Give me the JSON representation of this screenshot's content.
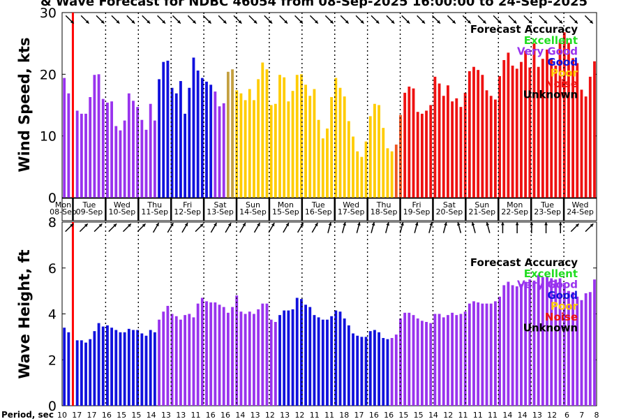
{
  "title": "& Wave Forecast for NDBC 46054 from 08-Sep-2025 16:00:00 to 24-Sep-2025",
  "period_label": "Period, sec",
  "period_values": [
    "10",
    "17",
    "17",
    "16",
    "15",
    "15",
    "14",
    "13",
    "13",
    "11",
    "16",
    "16",
    "14",
    "13",
    "12",
    "13",
    "12",
    "11",
    "11",
    "18",
    "17",
    "16",
    "16",
    "15",
    "15",
    "14",
    "12",
    "11",
    "11",
    "11",
    "14",
    "14",
    "13",
    "12",
    "6",
    "7",
    "8"
  ],
  "day_labels": [
    {
      "day": "Mon",
      "date": "08-Sep"
    },
    {
      "day": "Tue",
      "date": "09-Sep"
    },
    {
      "day": "Wed",
      "date": "10-Sep"
    },
    {
      "day": "Thu",
      "date": "11-Sep"
    },
    {
      "day": "Fri",
      "date": "12-Sep"
    },
    {
      "day": "Sat",
      "date": "13-Sep"
    },
    {
      "day": "Sun",
      "date": "14-Sep"
    },
    {
      "day": "Mon",
      "date": "15-Sep"
    },
    {
      "day": "Tue",
      "date": "16-Sep"
    },
    {
      "day": "Wed",
      "date": "17-Sep"
    },
    {
      "day": "Thu",
      "date": "18-Sep"
    },
    {
      "day": "Fri",
      "date": "19-Sep"
    },
    {
      "day": "Sat",
      "date": "20-Sep"
    },
    {
      "day": "Sun",
      "date": "21-Sep"
    },
    {
      "day": "Mon",
      "date": "22-Sep"
    },
    {
      "day": "Tue",
      "date": "23-Sep"
    },
    {
      "day": "Wed",
      "date": "24-Sep"
    }
  ],
  "legend": {
    "title": "Forecast Accuracy",
    "items": [
      {
        "label": "Excellent",
        "color": "#22dd22"
      },
      {
        "label": "Very Good",
        "color": "#9933ee"
      },
      {
        "label": "Good",
        "color": "#1111dd"
      },
      {
        "label": "Poor",
        "color": "#ffcc00"
      },
      {
        "label": "Noise",
        "color": "#ee1111"
      },
      {
        "label": "Unknown",
        "color": "#000000"
      }
    ]
  },
  "colors": {
    "purple": "#9933ee",
    "blue": "#1111dd",
    "gold": "#ffcc00",
    "tan": "#c4a040",
    "orange": "#ee5522",
    "red": "#ee1111",
    "now_line": "#ff0000"
  },
  "chart_data": [
    {
      "type": "bar",
      "title": "Wind Speed",
      "ylabel": "Wind Speed, kts",
      "ylim": [
        0,
        30
      ],
      "yticks": [
        0,
        10,
        20,
        30
      ],
      "x_start": "08-Sep-2025 16:00:00",
      "step_hours": 3,
      "values": [
        19.4,
        16.9,
        0,
        14.1,
        13.6,
        13.6,
        16.3,
        19.9,
        20.0,
        16.0,
        15.4,
        15.6,
        11.6,
        10.9,
        12.5,
        16.9,
        15.7,
        14.7,
        12.6,
        11.0,
        15.2,
        12.5,
        19.2,
        22.0,
        22.2,
        17.8,
        16.9,
        18.9,
        13.6,
        17.8,
        22.7,
        20.6,
        19.4,
        18.8,
        18.3,
        17.2,
        14.8,
        15.3,
        20.4,
        20.8,
        17.4,
        16.9,
        15.8,
        17.6,
        15.8,
        19.2,
        21.9,
        20.8,
        15.0,
        15.2,
        19.9,
        19.5,
        15.6,
        17.3,
        19.9,
        20.0,
        18.3,
        16.5,
        17.6,
        12.6,
        9.6,
        11.2,
        16.3,
        19.4,
        17.8,
        16.4,
        12.4,
        9.9,
        7.5,
        6.6,
        9.1,
        13.2,
        15.2,
        15.0,
        11.3,
        8.0,
        7.5,
        8.6,
        13.4,
        17.0,
        18.0,
        17.7,
        13.9,
        13.6,
        14.1,
        15.0,
        19.6,
        18.5,
        16.5,
        18.2,
        15.6,
        16.1,
        14.7,
        17.0,
        20.5,
        21.2,
        20.7,
        19.9,
        17.4,
        16.5,
        15.9,
        19.7,
        22.3,
        23.5,
        21.4,
        20.9,
        22.0,
        23.8,
        21.1,
        25.0,
        21.2,
        22.5,
        24.0,
        22.5,
        21.4,
        25.2,
        26.8,
        25.1,
        22.6,
        21.8,
        17.5,
        16.4,
        19.6,
        22.1
      ],
      "colors": [
        "purple",
        "purple",
        "purple",
        "purple",
        "purple",
        "purple",
        "purple",
        "purple",
        "purple",
        "purple",
        "purple",
        "purple",
        "purple",
        "purple",
        "purple",
        "purple",
        "purple",
        "purple",
        "purple",
        "purple",
        "purple",
        "purple",
        "blue",
        "blue",
        "blue",
        "blue",
        "blue",
        "blue",
        "blue",
        "blue",
        "blue",
        "blue",
        "blue",
        "blue",
        "blue",
        "purple",
        "purple",
        "purple",
        "tan",
        "tan",
        "gold",
        "gold",
        "gold",
        "gold",
        "gold",
        "gold",
        "gold",
        "gold",
        "gold",
        "gold",
        "gold",
        "gold",
        "gold",
        "gold",
        "gold",
        "gold",
        "gold",
        "gold",
        "gold",
        "gold",
        "gold",
        "gold",
        "gold",
        "gold",
        "gold",
        "gold",
        "gold",
        "gold",
        "gold",
        "gold",
        "gold",
        "gold",
        "gold",
        "gold",
        "gold",
        "gold",
        "gold",
        "orange",
        "orange",
        "red",
        "red",
        "red",
        "red",
        "red",
        "red",
        "red",
        "red",
        "red",
        "red",
        "red",
        "red",
        "red",
        "red",
        "red",
        "red",
        "red",
        "red",
        "red",
        "red",
        "red",
        "red",
        "red",
        "red",
        "red",
        "red",
        "red",
        "red",
        "red",
        "red",
        "red",
        "red",
        "red",
        "red",
        "red",
        "red",
        "red",
        "red",
        "red",
        "red",
        "red",
        "red",
        "red",
        "red",
        "red",
        "red"
      ],
      "direction_deg": [
        135,
        135,
        135,
        135,
        135,
        135,
        135,
        135,
        135,
        135,
        135,
        135,
        135,
        135,
        135,
        135,
        135,
        135,
        135,
        135,
        135,
        135,
        135,
        135,
        135,
        135,
        135,
        135,
        135,
        135,
        135,
        135,
        135,
        135,
        135
      ]
    },
    {
      "type": "bar",
      "title": "Wave Height",
      "ylabel": "Wave Height, ft",
      "ylim": [
        0,
        8
      ],
      "yticks": [
        0,
        2,
        4,
        6,
        8
      ],
      "values": [
        3.4,
        3.2,
        0,
        2.85,
        2.85,
        2.75,
        2.9,
        3.25,
        3.6,
        3.45,
        3.5,
        3.4,
        3.3,
        3.2,
        3.2,
        3.35,
        3.3,
        3.3,
        3.15,
        3.05,
        3.3,
        3.2,
        3.75,
        4.1,
        4.35,
        4.0,
        3.9,
        3.75,
        3.95,
        4.0,
        3.85,
        4.45,
        4.7,
        4.55,
        4.5,
        4.5,
        4.4,
        4.3,
        4.05,
        4.3,
        4.8,
        4.1,
        4.0,
        4.1,
        4.0,
        4.2,
        4.45,
        4.45,
        3.75,
        3.65,
        3.95,
        4.15,
        4.15,
        4.2,
        4.7,
        4.65,
        4.4,
        4.3,
        3.95,
        3.85,
        3.75,
        3.75,
        3.9,
        4.15,
        4.1,
        3.8,
        3.5,
        3.15,
        3.05,
        3.0,
        3.0,
        3.25,
        3.3,
        3.2,
        2.95,
        2.9,
        2.95,
        3.1,
        3.8,
        4.05,
        4.05,
        3.95,
        3.8,
        3.7,
        3.65,
        3.6,
        4.0,
        4.0,
        3.85,
        3.95,
        4.05,
        3.95,
        4.0,
        4.1,
        4.45,
        4.55,
        4.5,
        4.45,
        4.45,
        4.45,
        4.55,
        4.75,
        5.25,
        5.4,
        5.25,
        5.2,
        5.3,
        5.4,
        5.5,
        5.45,
        5.7,
        5.6,
        5.65,
        5.55,
        5.5,
        5.55,
        5.35,
        5.0,
        4.95,
        4.75,
        4.6,
        4.9,
        4.95,
        5.5
      ],
      "colors": [
        "blue",
        "blue",
        "blue",
        "blue",
        "blue",
        "blue",
        "blue",
        "blue",
        "blue",
        "blue",
        "blue",
        "blue",
        "blue",
        "blue",
        "blue",
        "blue",
        "blue",
        "blue",
        "blue",
        "blue",
        "blue",
        "blue",
        "purple",
        "purple",
        "purple",
        "purple",
        "purple",
        "purple",
        "purple",
        "purple",
        "purple",
        "purple",
        "purple",
        "purple",
        "purple",
        "purple",
        "purple",
        "purple",
        "purple",
        "purple",
        "purple",
        "purple",
        "purple",
        "purple",
        "purple",
        "purple",
        "purple",
        "purple",
        "purple",
        "purple",
        "blue",
        "blue",
        "blue",
        "blue",
        "blue",
        "blue",
        "blue",
        "blue",
        "blue",
        "blue",
        "blue",
        "blue",
        "blue",
        "blue",
        "blue",
        "blue",
        "blue",
        "blue",
        "blue",
        "blue",
        "blue",
        "blue",
        "blue",
        "blue",
        "blue",
        "blue",
        "purple",
        "purple",
        "purple",
        "purple",
        "purple",
        "purple",
        "purple",
        "purple",
        "purple",
        "purple",
        "purple",
        "purple",
        "purple",
        "purple",
        "purple",
        "purple",
        "purple",
        "purple",
        "purple",
        "purple",
        "purple",
        "purple",
        "purple",
        "purple",
        "purple",
        "purple",
        "purple",
        "purple",
        "purple",
        "purple",
        "purple",
        "purple",
        "purple",
        "purple",
        "purple",
        "purple",
        "purple",
        "purple",
        "purple",
        "purple",
        "purple",
        "purple",
        "purple",
        "purple",
        "purple",
        "purple",
        "purple",
        "purple",
        "purple",
        "purple",
        "purple",
        "purple"
      ],
      "direction_deg": [
        45,
        45,
        45,
        45,
        45,
        45,
        30,
        30,
        30,
        45,
        30,
        30,
        30,
        30,
        30,
        30,
        30,
        30,
        15,
        15,
        15,
        15,
        15,
        15,
        15,
        15,
        15,
        345,
        345,
        345,
        0,
        0,
        0,
        0,
        0,
        45,
        45
      ]
    }
  ]
}
